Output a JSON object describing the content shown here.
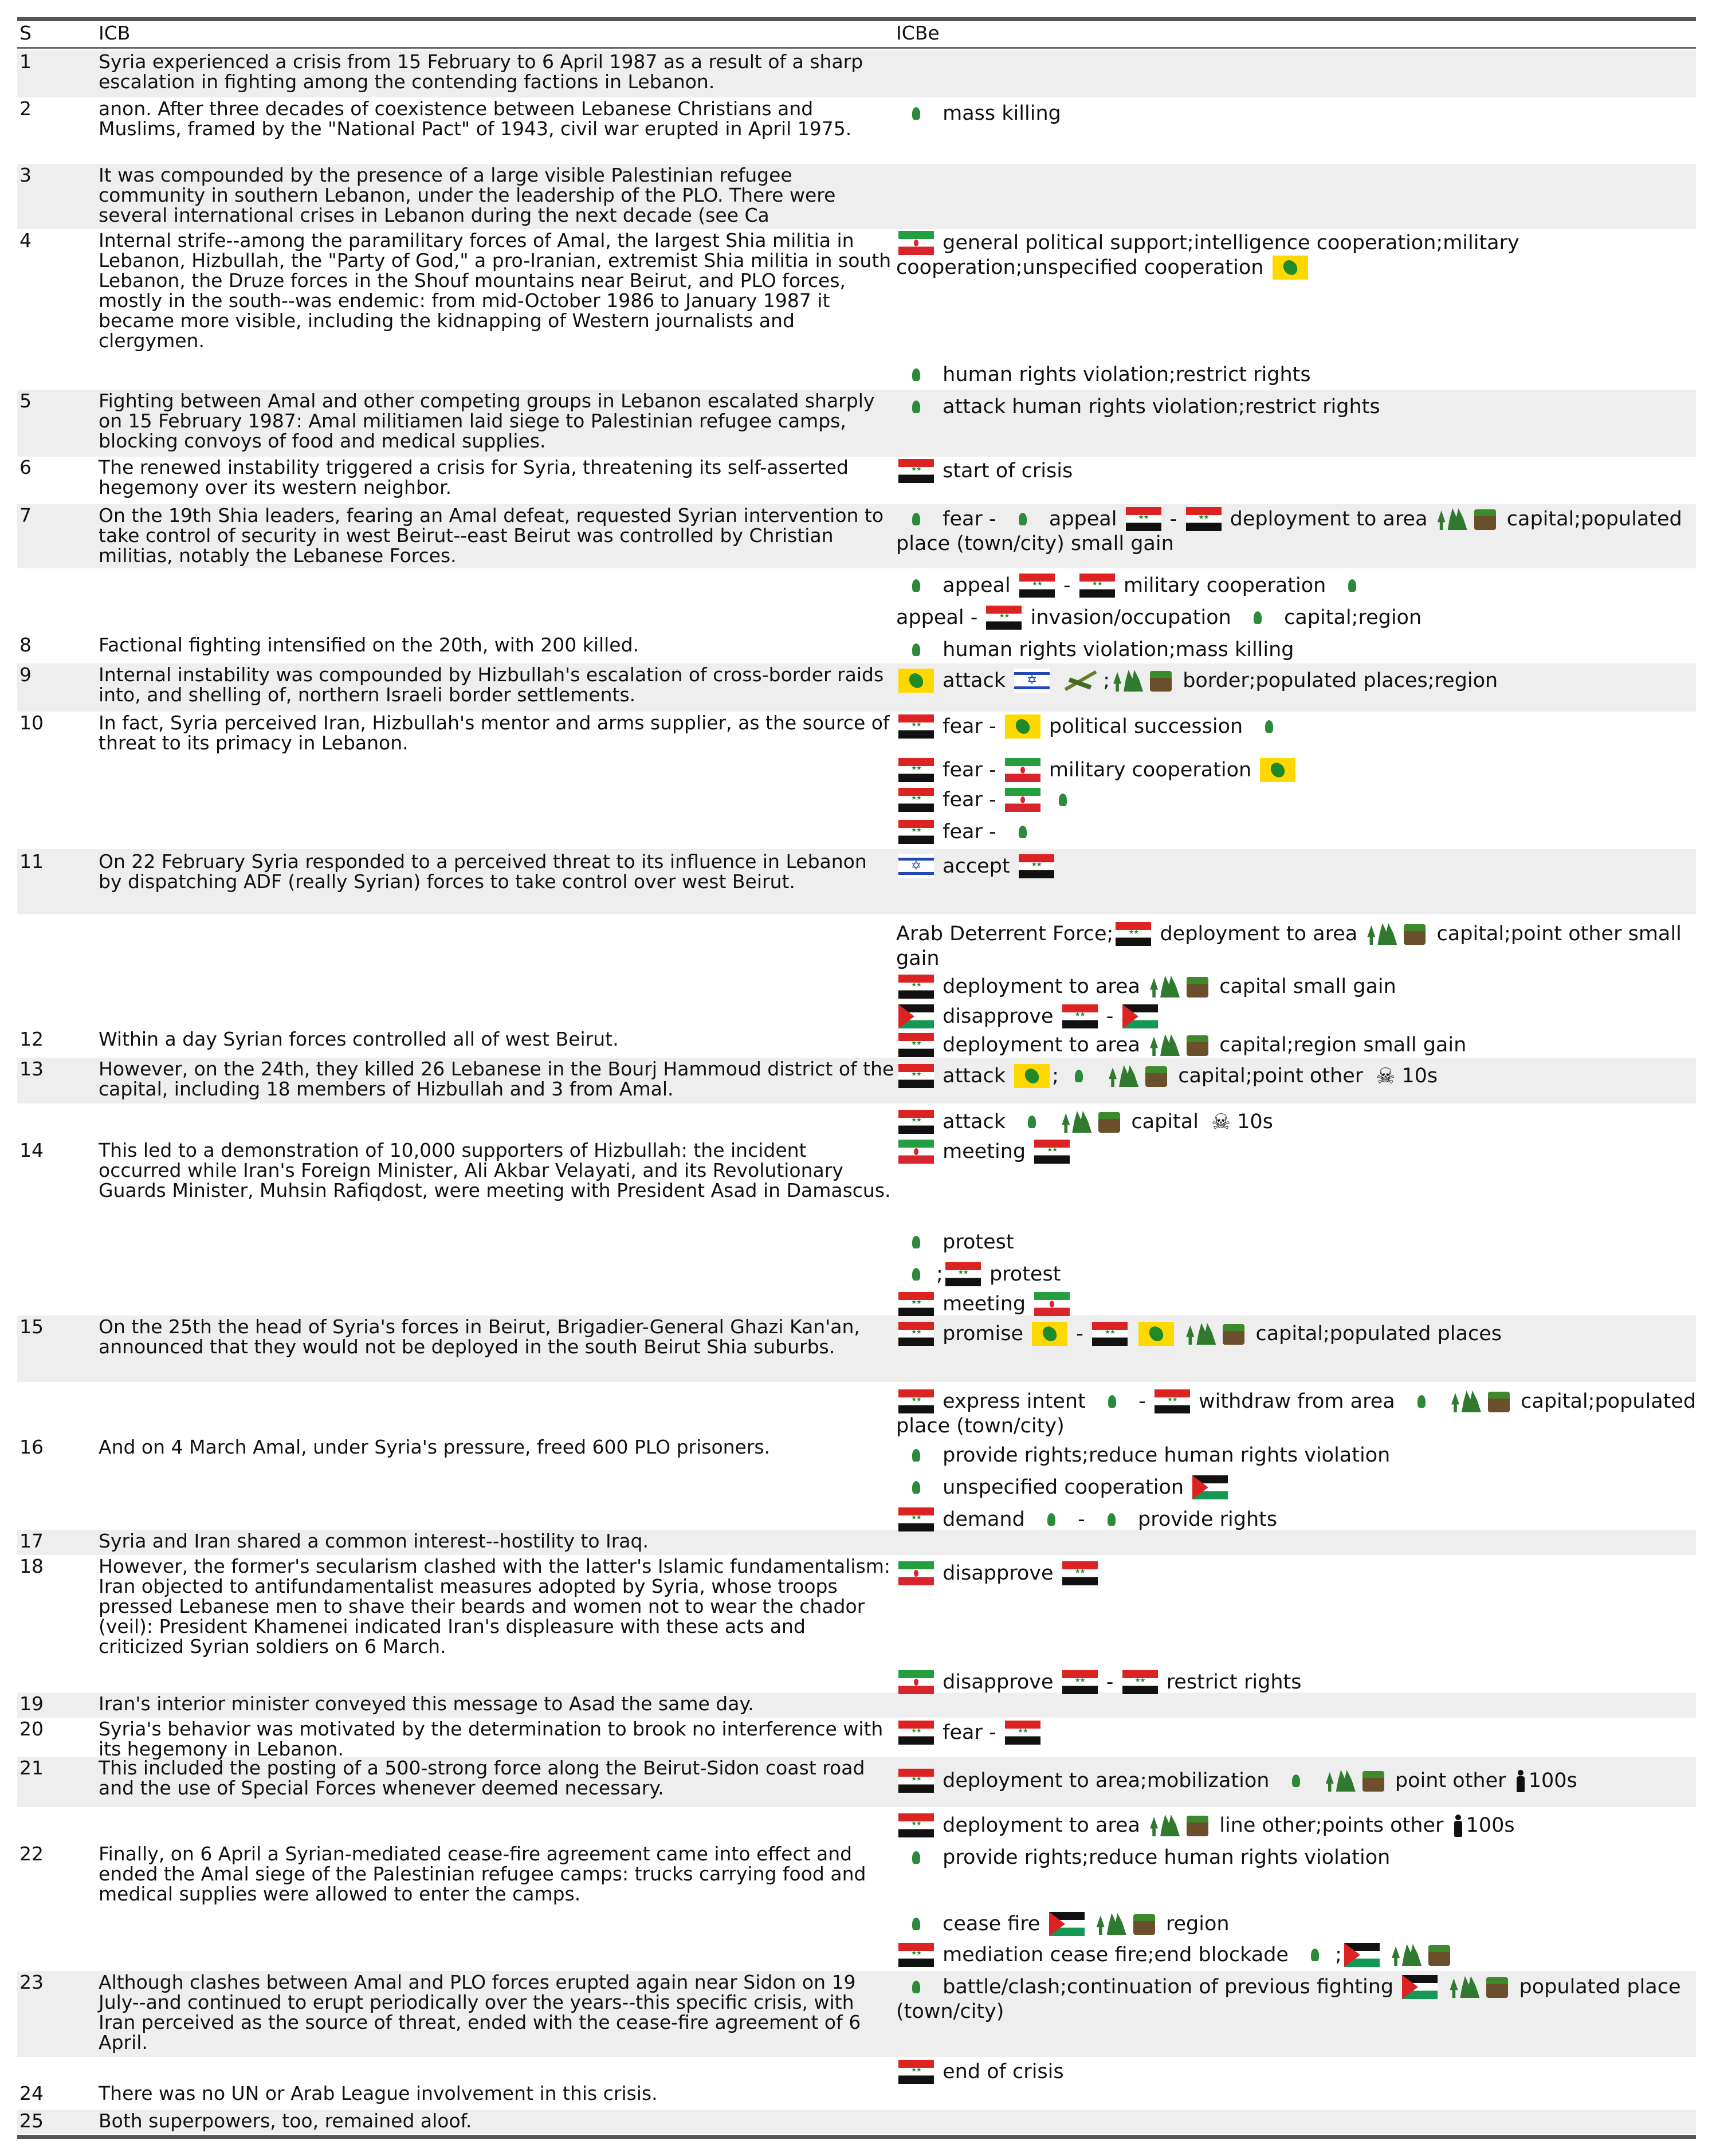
{
  "headers": {
    "s": "S",
    "icb": "ICB",
    "icbe": "ICBe"
  },
  "rows": [
    {
      "s": "1",
      "icb": "Syria experienced a crisis from 15 February to 6 April 1987 as a result of a sharp escalation in fighting among the contending factions in Lebanon."
    },
    {
      "s": "2",
      "icb": "anon. After three decades of coexistence between Lebanese Christians and Muslims, framed by the \"National Pact\" of 1943, civil war erupted in April 1975."
    },
    {
      "s": "3",
      "icb": "It was compounded by the presence of a large visible Palestinian refugee community in southern Lebanon, under the leadership of the PLO. There were several international crises in Lebanon during the next decade (see Ca"
    },
    {
      "s": "4",
      "icb": "Internal strife--among the paramilitary forces of Amal, the largest Shia militia in Lebanon, Hizbullah, the \"Party of God,\" a pro-Iranian, extremist Shia militia in south Lebanon, the Druze forces in the Shouf mountains near Beirut, and PLO forces, mostly in the south--was endemic: from mid-October 1986 to January 1987 it became more visible, including the kidnapping of Western journalists and clergymen."
    },
    {
      "s": "5",
      "icb": "Fighting between Amal and other competing groups in Lebanon escalated sharply on 15 February 1987: Amal militiamen laid siege to Palestinian refugee camps, blocking convoys of food and medical supplies."
    },
    {
      "s": "6",
      "icb": "The renewed instability triggered a crisis for Syria, threatening its self-asserted hegemony over its western neighbor."
    },
    {
      "s": "7",
      "icb": "On the 19th Shia leaders, fearing an Amal defeat, requested Syrian intervention to take control of security in west Beirut--east Beirut was controlled by Christian militias, notably the Lebanese Forces."
    },
    {
      "s": "8",
      "icb": "Factional fighting intensified on the 20th, with 200 killed."
    },
    {
      "s": "9",
      "icb": "Internal instability was compounded by Hizbullah's escalation of cross-border raids into, and shelling of, northern Israeli border settlements."
    },
    {
      "s": "10",
      "icb": "In fact, Syria perceived Iran, Hizbullah's mentor and arms supplier, as the source of threat to its primacy in Lebanon."
    },
    {
      "s": "11",
      "icb": "On 22 February Syria responded to a perceived threat to its influence in Lebanon by dispatching ADF (really Syrian) forces to take control over west Beirut."
    },
    {
      "s": "12",
      "icb": "Within a day Syrian forces controlled all of west Beirut."
    },
    {
      "s": "13",
      "icb": "However, on the 24th, they killed 26 Lebanese in the Bourj Hammoud district of the capital, including 18 members of Hizbullah and 3 from Amal."
    },
    {
      "s": "14",
      "icb": "This led to a demonstration of 10,000 supporters of Hizbullah: the incident occurred while Iran's Foreign Minister, Ali Akbar Velayati, and its Revolutionary Guards Minister, Muhsin Rafiqdost, were meeting with President Asad in Damascus."
    },
    {
      "s": "15",
      "icb": "On the 25th the head of Syria's forces in Beirut, Brigadier-General Ghazi Kan'an, announced that they would not be deployed in the south Beirut Shia suburbs."
    },
    {
      "s": "16",
      "icb": "And on 4 March Amal, under Syria's pressure, freed 600 PLO prisoners."
    },
    {
      "s": "17",
      "icb": "Syria and Iran shared a common interest--hostility to Iraq."
    },
    {
      "s": "18",
      "icb": "However, the former's secularism clashed with the latter's Islamic fundamentalism: Iran objected to antifundamentalist measures adopted by Syria, whose troops pressed Lebanese men to shave their beards and women not to wear the chador (veil): President Khamenei indicated Iran's displeasure with these acts and criticized Syrian soldiers on 6 March."
    },
    {
      "s": "19",
      "icb": "Iran's interior minister conveyed this message to Asad the same day."
    },
    {
      "s": "20",
      "icb": "Syria's behavior was motivated by the determination to brook no interference with its hegemony in Lebanon."
    },
    {
      "s": "21",
      "icb": "This included the posting of a 500-strong force along the Beirut-Sidon coast road and the use of Special Forces whenever deemed necessary."
    },
    {
      "s": "22",
      "icb": "Finally, on 6 April a Syrian-mediated cease-fire agreement came into effect and ended the Amal siege of the Palestinian refugee camps: trucks carrying food and medical supplies were allowed to enter the camps."
    },
    {
      "s": "23",
      "icb": "Although clashes between Amal and PLO forces erupted again near Sidon on 19 July--and continued to erupt periodically over the years--this specific crisis, with Iran perceived as the source of threat, ended with the cease-fire agreement of 6 April."
    },
    {
      "s": "24",
      "icb": "There was no UN or Arab League involvement in this crisis."
    },
    {
      "s": "25",
      "icb": "Both superpowers, too, remained aloof."
    }
  ],
  "events": {
    "e2": "mass killing",
    "e4a": "general political support;intelligence cooperation;military cooperation;unspecified cooperation",
    "e4b": "human rights violation;restrict rights",
    "e5": "attack human rights violation;restrict rights",
    "e6": "start of crisis",
    "e7a1": "fear -",
    "e7a2": "appeal",
    "e7a3": "-",
    "e7a4": "deployment to area",
    "e7a5": "capital;populated place (town/city) small gain",
    "e7b1": "appeal",
    "e7b2": "-",
    "e7b3": "military cooperation",
    "e7c1": "appeal -",
    "e7c2": "invasion/occupation",
    "e7c3": "capital;region",
    "e8": "human rights violation;mass killing",
    "e9a": "attack",
    "e9b": ";",
    "e9c": "border;populated places;region",
    "e10a1": "fear -",
    "e10a2": "political succession",
    "e10b1": "fear -",
    "e10b2": "military cooperation",
    "e10c": "fear -",
    "e10d": "fear -",
    "e11a": "accept",
    "e11b1": "Arab Deterrent Force;",
    "e11b2": "deployment to area",
    "e11b3": "capital;point other small gain",
    "e11c1": "deployment to area",
    "e11c2": "capital small gain",
    "e11d1": "disapprove",
    "e11d2": "-",
    "e12a": "deployment to area",
    "e12b": "capital;region small gain",
    "e13a": "attack",
    "e13b": ";",
    "e13c": "capital;point other",
    "e13d": "10s",
    "e13e1": "attack",
    "e13e2": "capital",
    "e13e3": "10s",
    "e14a": "meeting",
    "e14b": "protest",
    "e14c1": ";",
    "e14c2": "protest",
    "e14d": "meeting",
    "e15a": "promise",
    "e15b": "-",
    "e15c": "capital;populated places",
    "e15d1": "express intent",
    "e15d2": "-",
    "e15d3": "withdraw from area",
    "e15d4": "capital;populated place (town/city)",
    "e16a": "provide rights;reduce human rights violation",
    "e16b": "unspecified cooperation",
    "e16c1": "demand",
    "e16c2": "-",
    "e16c3": "provide rights",
    "e18a": "disapprove",
    "e18b1": "disapprove",
    "e18b2": "-",
    "e18b3": "restrict rights",
    "e20": "fear -",
    "e21a": "deployment to area;mobilization",
    "e21b": "point other",
    "e21c": "100s",
    "e22a1": "deployment to area",
    "e22a2": "line other;points other",
    "e22a3": "100s",
    "e22b": "provide rights;reduce human rights violation",
    "e22c1": "cease fire",
    "e22c2": "region",
    "e22d1": "mediation cease fire;end blockade",
    "e22d2": ";",
    "e23a": "battle/clash;continuation of previous fighting",
    "e23b": "populated place (town/city)",
    "e23c": "end of crisis"
  }
}
